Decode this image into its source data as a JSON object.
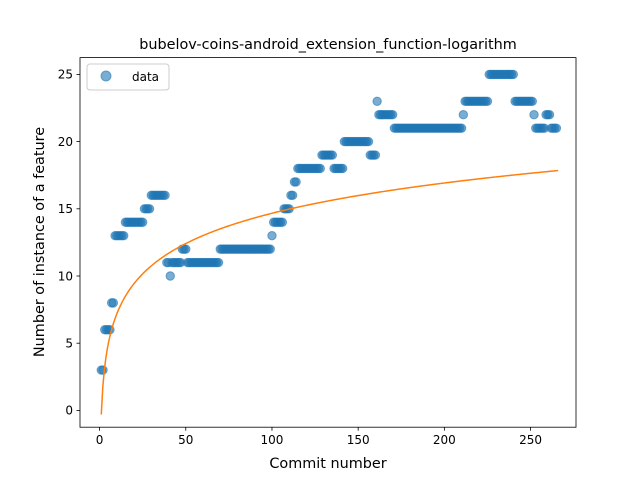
{
  "chart_data": {
    "type": "scatter",
    "title": "bubelov-coins-android_extension_function-logarithm",
    "xlabel": "Commit number",
    "ylabel": "Number of instance of a feature",
    "xlim": [
      -11.35,
      276.35
    ],
    "ylim": [
      -1.25,
      26.25
    ],
    "xticks": [
      0,
      50,
      100,
      150,
      200,
      250
    ],
    "yticks": [
      0,
      5,
      10,
      15,
      20,
      25
    ],
    "grid": false,
    "legend_position": "top-left",
    "series": [
      {
        "name": "data",
        "style": "points",
        "color": "#1f77b4",
        "points": [
          [
            1,
            3
          ],
          [
            2,
            3
          ],
          [
            3,
            6
          ],
          [
            4,
            6
          ],
          [
            5,
            6
          ],
          [
            6,
            6
          ],
          [
            7,
            8
          ],
          [
            8,
            8
          ],
          [
            9,
            13
          ],
          [
            10,
            13
          ],
          [
            11,
            13
          ],
          [
            12,
            13
          ],
          [
            13,
            13
          ],
          [
            14,
            13
          ],
          [
            15,
            14
          ],
          [
            16,
            14
          ],
          [
            17,
            14
          ],
          [
            18,
            14
          ],
          [
            19,
            14
          ],
          [
            20,
            14
          ],
          [
            21,
            14
          ],
          [
            22,
            14
          ],
          [
            23,
            14
          ],
          [
            24,
            14
          ],
          [
            25,
            14
          ],
          [
            26,
            15
          ],
          [
            27,
            15
          ],
          [
            28,
            15
          ],
          [
            29,
            15
          ],
          [
            30,
            16
          ],
          [
            31,
            16
          ],
          [
            32,
            16
          ],
          [
            33,
            16
          ],
          [
            34,
            16
          ],
          [
            35,
            16
          ],
          [
            36,
            16
          ],
          [
            37,
            16
          ],
          [
            38,
            16
          ],
          [
            39,
            11
          ],
          [
            40,
            11
          ],
          [
            41,
            10
          ],
          [
            42,
            11
          ],
          [
            43,
            11
          ],
          [
            44,
            11
          ],
          [
            45,
            11
          ],
          [
            46,
            11
          ],
          [
            47,
            11
          ],
          [
            48,
            12
          ],
          [
            49,
            12
          ],
          [
            50,
            12
          ],
          [
            51,
            11
          ],
          [
            52,
            11
          ],
          [
            53,
            11
          ],
          [
            54,
            11
          ],
          [
            55,
            11
          ],
          [
            56,
            11
          ],
          [
            57,
            11
          ],
          [
            58,
            11
          ],
          [
            59,
            11
          ],
          [
            60,
            11
          ],
          [
            61,
            11
          ],
          [
            62,
            11
          ],
          [
            63,
            11
          ],
          [
            64,
            11
          ],
          [
            65,
            11
          ],
          [
            66,
            11
          ],
          [
            67,
            11
          ],
          [
            68,
            11
          ],
          [
            69,
            11
          ],
          [
            70,
            12
          ],
          [
            71,
            12
          ],
          [
            72,
            12
          ],
          [
            73,
            12
          ],
          [
            74,
            12
          ],
          [
            75,
            12
          ],
          [
            76,
            12
          ],
          [
            77,
            12
          ],
          [
            78,
            12
          ],
          [
            79,
            12
          ],
          [
            80,
            12
          ],
          [
            81,
            12
          ],
          [
            82,
            12
          ],
          [
            83,
            12
          ],
          [
            84,
            12
          ],
          [
            85,
            12
          ],
          [
            86,
            12
          ],
          [
            87,
            12
          ],
          [
            88,
            12
          ],
          [
            89,
            12
          ],
          [
            90,
            12
          ],
          [
            91,
            12
          ],
          [
            92,
            12
          ],
          [
            93,
            12
          ],
          [
            94,
            12
          ],
          [
            95,
            12
          ],
          [
            96,
            12
          ],
          [
            97,
            12
          ],
          [
            98,
            12
          ],
          [
            99,
            12
          ],
          [
            100,
            13
          ],
          [
            101,
            14
          ],
          [
            102,
            14
          ],
          [
            103,
            14
          ],
          [
            104,
            14
          ],
          [
            105,
            14
          ],
          [
            106,
            14
          ],
          [
            107,
            15
          ],
          [
            108,
            15
          ],
          [
            109,
            15
          ],
          [
            110,
            15
          ],
          [
            111,
            16
          ],
          [
            112,
            16
          ],
          [
            113,
            17
          ],
          [
            114,
            17
          ],
          [
            115,
            18
          ],
          [
            116,
            18
          ],
          [
            117,
            18
          ],
          [
            118,
            18
          ],
          [
            119,
            18
          ],
          [
            120,
            18
          ],
          [
            121,
            18
          ],
          [
            122,
            18
          ],
          [
            123,
            18
          ],
          [
            124,
            18
          ],
          [
            125,
            18
          ],
          [
            126,
            18
          ],
          [
            127,
            18
          ],
          [
            128,
            18
          ],
          [
            129,
            19
          ],
          [
            130,
            19
          ],
          [
            131,
            19
          ],
          [
            132,
            19
          ],
          [
            133,
            19
          ],
          [
            134,
            19
          ],
          [
            135,
            19
          ],
          [
            136,
            18
          ],
          [
            137,
            18
          ],
          [
            138,
            18
          ],
          [
            139,
            18
          ],
          [
            140,
            18
          ],
          [
            141,
            18
          ],
          [
            142,
            20
          ],
          [
            143,
            20
          ],
          [
            144,
            20
          ],
          [
            145,
            20
          ],
          [
            146,
            20
          ],
          [
            147,
            20
          ],
          [
            148,
            20
          ],
          [
            149,
            20
          ],
          [
            150,
            20
          ],
          [
            151,
            20
          ],
          [
            152,
            20
          ],
          [
            153,
            20
          ],
          [
            154,
            20
          ],
          [
            155,
            20
          ],
          [
            156,
            20
          ],
          [
            157,
            19
          ],
          [
            158,
            19
          ],
          [
            159,
            19
          ],
          [
            160,
            19
          ],
          [
            161,
            23
          ],
          [
            162,
            22
          ],
          [
            163,
            22
          ],
          [
            164,
            22
          ],
          [
            165,
            22
          ],
          [
            166,
            22
          ],
          [
            167,
            22
          ],
          [
            168,
            22
          ],
          [
            169,
            22
          ],
          [
            170,
            22
          ],
          [
            171,
            21
          ],
          [
            172,
            21
          ],
          [
            173,
            21
          ],
          [
            174,
            21
          ],
          [
            175,
            21
          ],
          [
            176,
            21
          ],
          [
            177,
            21
          ],
          [
            178,
            21
          ],
          [
            179,
            21
          ],
          [
            180,
            21
          ],
          [
            181,
            21
          ],
          [
            182,
            21
          ],
          [
            183,
            21
          ],
          [
            184,
            21
          ],
          [
            185,
            21
          ],
          [
            186,
            21
          ],
          [
            187,
            21
          ],
          [
            188,
            21
          ],
          [
            189,
            21
          ],
          [
            190,
            21
          ],
          [
            191,
            21
          ],
          [
            192,
            21
          ],
          [
            193,
            21
          ],
          [
            194,
            21
          ],
          [
            195,
            21
          ],
          [
            196,
            21
          ],
          [
            197,
            21
          ],
          [
            198,
            21
          ],
          [
            199,
            21
          ],
          [
            200,
            21
          ],
          [
            201,
            21
          ],
          [
            202,
            21
          ],
          [
            203,
            21
          ],
          [
            204,
            21
          ],
          [
            205,
            21
          ],
          [
            206,
            21
          ],
          [
            207,
            21
          ],
          [
            208,
            21
          ],
          [
            209,
            21
          ],
          [
            210,
            21
          ],
          [
            211,
            22
          ],
          [
            212,
            23
          ],
          [
            213,
            23
          ],
          [
            214,
            23
          ],
          [
            215,
            23
          ],
          [
            216,
            23
          ],
          [
            217,
            23
          ],
          [
            218,
            23
          ],
          [
            219,
            23
          ],
          [
            220,
            23
          ],
          [
            221,
            23
          ],
          [
            222,
            23
          ],
          [
            223,
            23
          ],
          [
            224,
            23
          ],
          [
            225,
            23
          ],
          [
            226,
            25
          ],
          [
            227,
            25
          ],
          [
            228,
            25
          ],
          [
            229,
            25
          ],
          [
            230,
            25
          ],
          [
            231,
            25
          ],
          [
            232,
            25
          ],
          [
            233,
            25
          ],
          [
            234,
            25
          ],
          [
            235,
            25
          ],
          [
            236,
            25
          ],
          [
            237,
            25
          ],
          [
            238,
            25
          ],
          [
            239,
            25
          ],
          [
            240,
            25
          ],
          [
            241,
            23
          ],
          [
            242,
            23
          ],
          [
            243,
            23
          ],
          [
            244,
            23
          ],
          [
            245,
            23
          ],
          [
            246,
            23
          ],
          [
            247,
            23
          ],
          [
            248,
            23
          ],
          [
            249,
            23
          ],
          [
            250,
            23
          ],
          [
            251,
            23
          ],
          [
            252,
            22
          ],
          [
            253,
            21
          ],
          [
            254,
            21
          ],
          [
            255,
            21
          ],
          [
            256,
            21
          ],
          [
            257,
            21
          ],
          [
            258,
            21
          ],
          [
            259,
            22
          ],
          [
            260,
            22
          ],
          [
            261,
            22
          ],
          [
            262,
            21
          ],
          [
            263,
            21
          ],
          [
            264,
            21
          ],
          [
            265,
            21
          ]
        ]
      },
      {
        "name": "",
        "style": "line",
        "color": "#ff7f0e",
        "fit": "logarithmic",
        "a": 3.25,
        "b": -0.3,
        "x_range": [
          1,
          266
        ]
      }
    ]
  }
}
